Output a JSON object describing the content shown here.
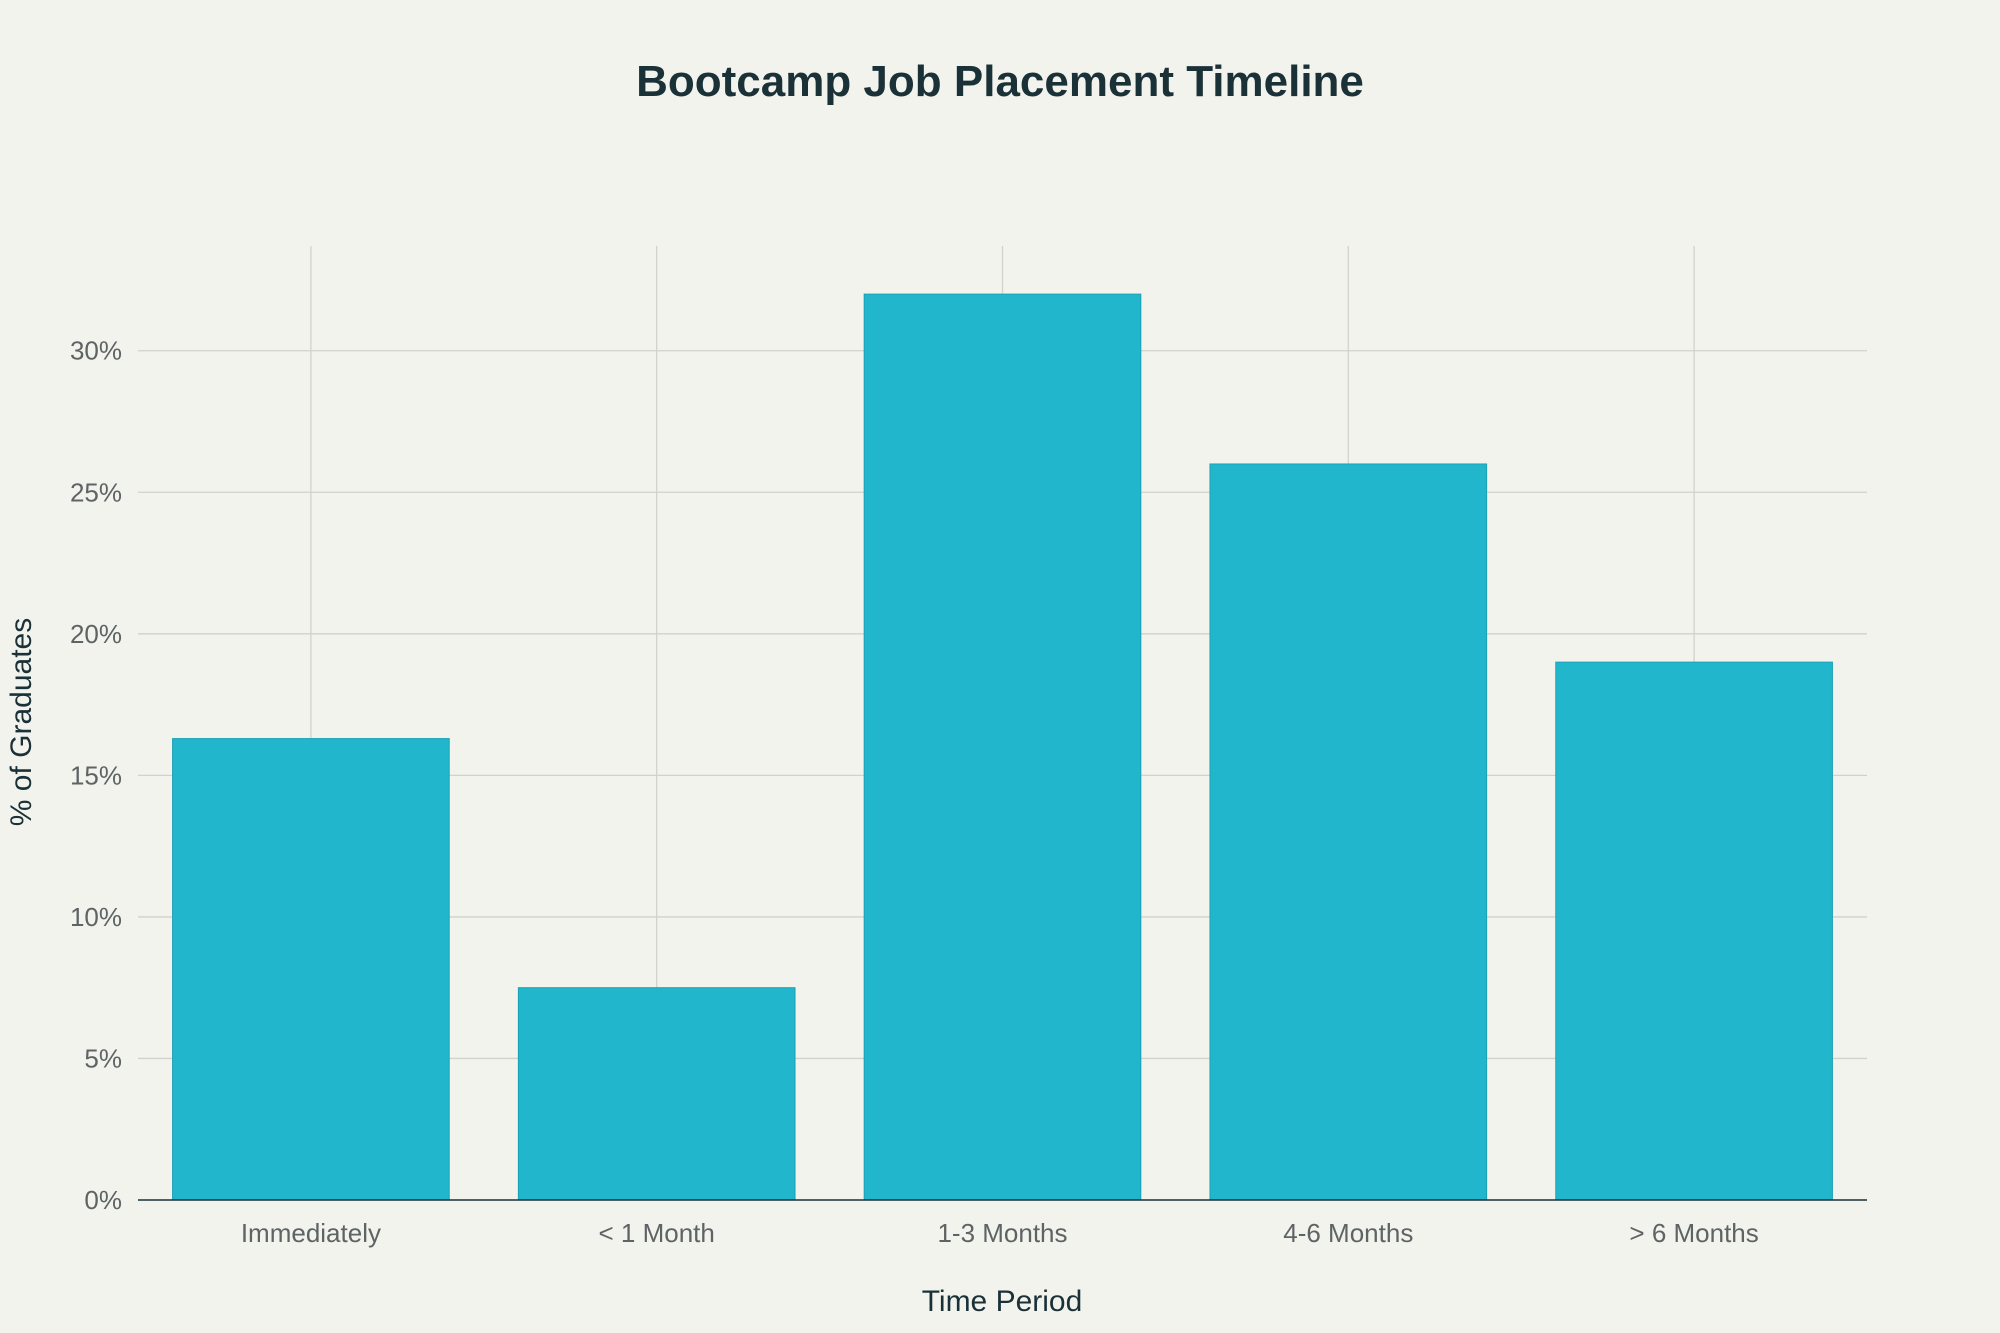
{
  "chart_data": {
    "type": "bar",
    "title": "Bootcamp Job Placement Timeline",
    "xlabel": "Time Period",
    "ylabel": "% of Graduates",
    "categories": [
      "Immediately",
      "< 1 Month",
      "1-3 Months",
      "4-6 Months",
      "> 6 Months"
    ],
    "values": [
      16.3,
      7.5,
      32.0,
      26.0,
      19.0
    ],
    "ylim": [
      0,
      33.7
    ],
    "yticks": [
      0,
      5,
      10,
      15,
      20,
      25,
      30
    ],
    "ytick_suffix": "%",
    "grid": true,
    "legend": "none",
    "colors": {
      "bar": "#21b6cb",
      "background": "#f3f3ee",
      "grid": "#d0d2cc",
      "text": "#1b3138"
    }
  }
}
